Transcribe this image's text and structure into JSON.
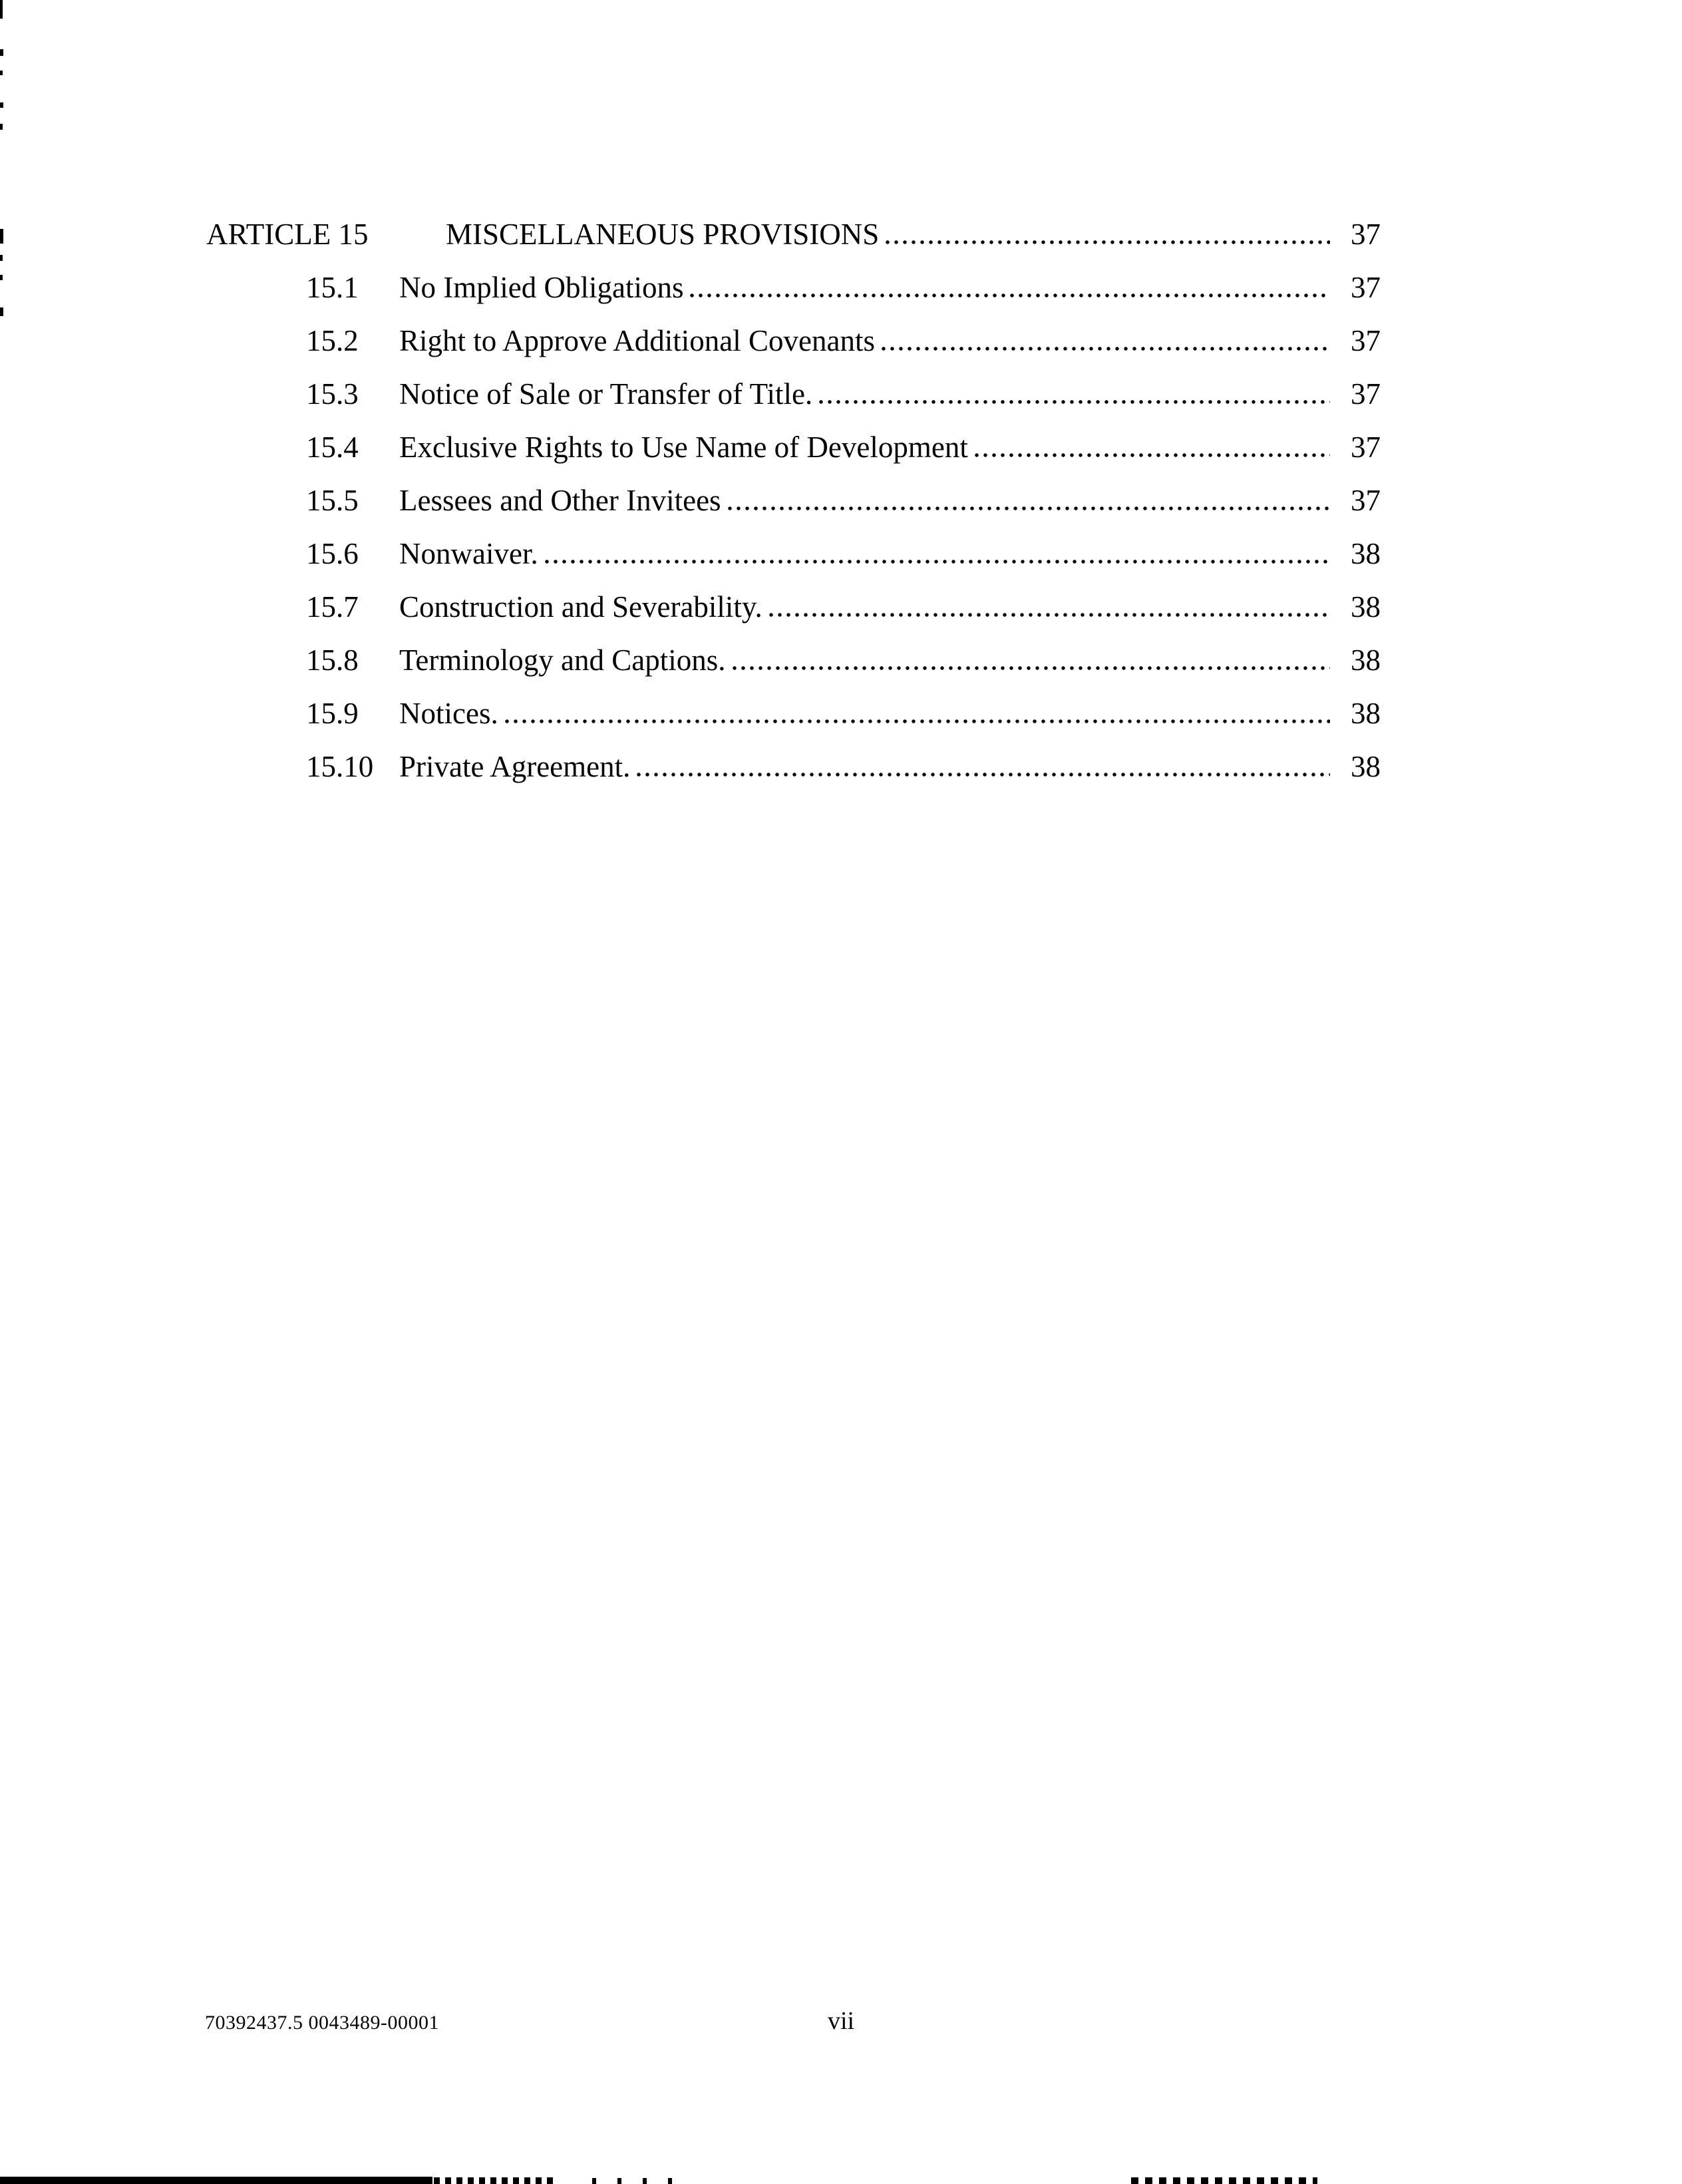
{
  "toc": {
    "heading": {
      "label": "ARTICLE 15",
      "title": "MISCELLANEOUS PROVISIONS",
      "page": "37"
    },
    "entries": [
      {
        "num": "15.1",
        "title": "No Implied Obligations",
        "page": "37"
      },
      {
        "num": "15.2",
        "title": "Right to Approve Additional Covenants",
        "page": "37"
      },
      {
        "num": "15.3",
        "title": "Notice of Sale or Transfer of Title.",
        "page": "37"
      },
      {
        "num": "15.4",
        "title": "Exclusive Rights to Use Name of Development",
        "page": "37"
      },
      {
        "num": "15.5",
        "title": "Lessees and Other Invitees",
        "page": "37"
      },
      {
        "num": "15.6",
        "title": "Nonwaiver.",
        "page": "38"
      },
      {
        "num": "15.7",
        "title": "Construction and Severability.",
        "page": "38"
      },
      {
        "num": "15.8",
        "title": "Terminology and Captions.",
        "page": "38"
      },
      {
        "num": "15.9",
        "title": "Notices.",
        "page": "38"
      },
      {
        "num": "15.10",
        "title": "Private Agreement.",
        "page": "38"
      }
    ]
  },
  "footer": {
    "document_id": "70392437.5 0043489-00001",
    "folio": "vii"
  },
  "colors": {
    "ink": "#050505",
    "paper": "#ffffff"
  }
}
